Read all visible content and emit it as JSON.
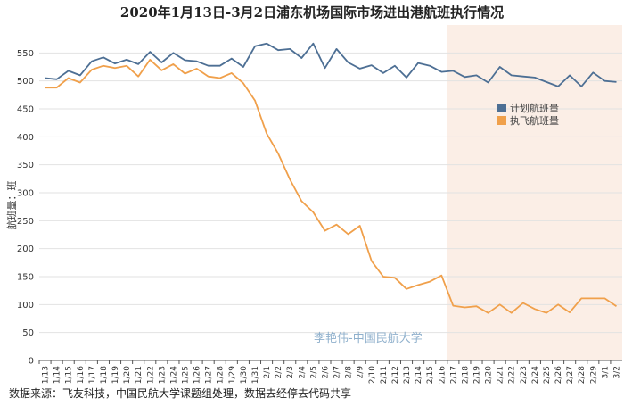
{
  "title": "2020年1月13日-3月2日浦东机场国际市场进出港航班执行情况",
  "source_note": "数据来源：飞友科技，中国民航大学课题组处理，数据去经停去代码共享",
  "watermark": "李艳伟-中国民航大学",
  "colors": {
    "planned": "#4d6f94",
    "executed": "#f0a04b",
    "shade": "#fbeee6",
    "grid": "#e2e2e2"
  },
  "chart_data": {
    "type": "line",
    "title": "2020年1月13日-3月2日浦东机场国际市场进出港航班执行情况",
    "ylabel": "航班量：班",
    "xlabel": "",
    "ylim": [
      0,
      600
    ],
    "yticks": [
      0,
      50,
      100,
      150,
      200,
      250,
      300,
      350,
      400,
      450,
      500,
      550
    ],
    "grid": true,
    "legend_position": "right",
    "shaded_from": "2/17",
    "x": [
      "1/13",
      "1/14",
      "1/15",
      "1/16",
      "1/17",
      "1/18",
      "1/19",
      "1/20",
      "1/21",
      "1/22",
      "1/23",
      "1/24",
      "1/25",
      "1/26",
      "1/27",
      "1/28",
      "1/29",
      "1/30",
      "1/31",
      "2/1",
      "2/2",
      "2/3",
      "2/4",
      "2/5",
      "2/6",
      "2/7",
      "2/8",
      "2/9",
      "2/10",
      "2/11",
      "2/12",
      "2/13",
      "2/14",
      "2/15",
      "2/16",
      "2/17",
      "2/18",
      "2/19",
      "2/20",
      "2/21",
      "2/22",
      "2/23",
      "2/24",
      "2/25",
      "2/26",
      "2/27",
      "2/28",
      "2/29",
      "3/1",
      "3/2"
    ],
    "series": [
      {
        "name": "计划航班量",
        "color": "#4d6f94",
        "values": [
          505,
          503,
          518,
          510,
          535,
          542,
          531,
          538,
          530,
          552,
          533,
          550,
          537,
          535,
          527,
          527,
          540,
          525,
          562,
          567,
          555,
          557,
          541,
          567,
          523,
          557,
          533,
          522,
          528,
          514,
          527,
          506,
          532,
          527,
          516,
          518,
          507,
          510,
          497,
          525,
          510,
          508,
          506,
          498,
          490,
          510,
          490,
          515,
          500,
          498
        ]
      },
      {
        "name": "执飞航班量",
        "color": "#f0a04b",
        "values": [
          488,
          488,
          505,
          497,
          520,
          527,
          523,
          527,
          508,
          538,
          519,
          530,
          513,
          522,
          508,
          505,
          514,
          496,
          465,
          406,
          370,
          324,
          285,
          265,
          232,
          243,
          226,
          241,
          178,
          150,
          148,
          128,
          135,
          141,
          152,
          98,
          95,
          97,
          85,
          100,
          85,
          103,
          92,
          85,
          100,
          86,
          111,
          111,
          111,
          97
        ]
      }
    ]
  }
}
